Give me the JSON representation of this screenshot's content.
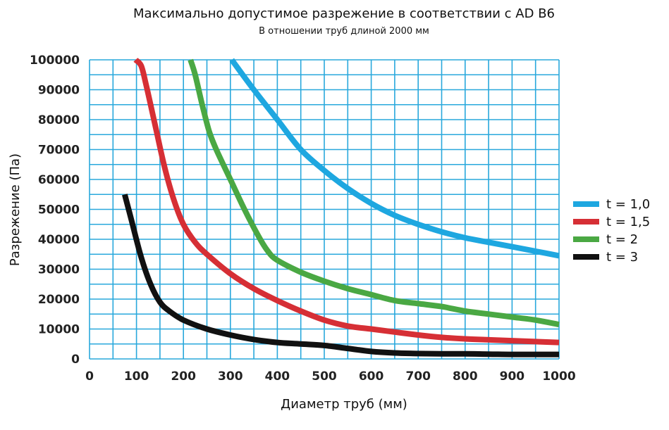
{
  "chart_data": {
    "type": "line",
    "title": "Максимально допустимое разрежение в соответствии с AD B6",
    "subtitle": "В отношении труб длиной 2000 мм",
    "xlabel": "Диаметр труб (мм)",
    "ylabel": "Разрежение (Па)",
    "xlim": [
      0,
      1000
    ],
    "ylim": [
      0,
      100000
    ],
    "x_ticks": [
      "0",
      "100",
      "200",
      "300",
      "400",
      "500",
      "600",
      "700",
      "800",
      "900",
      "1000"
    ],
    "y_ticks": [
      "0",
      "10000",
      "20000",
      "30000",
      "40000",
      "50000",
      "60000",
      "70000",
      "80000",
      "90000",
      "100000"
    ],
    "grid": true,
    "grid_color": "#29a8dc",
    "legend_position": "right",
    "series": [
      {
        "name": "t = 1,0",
        "color": "#1ea7e0",
        "points": [
          [
            303,
            100000
          ],
          [
            350,
            90000
          ],
          [
            400,
            80000
          ],
          [
            450,
            70000
          ],
          [
            500,
            63000
          ],
          [
            550,
            57000
          ],
          [
            600,
            52000
          ],
          [
            650,
            48000
          ],
          [
            700,
            45000
          ],
          [
            750,
            42500
          ],
          [
            800,
            40500
          ],
          [
            850,
            39000
          ],
          [
            900,
            37500
          ],
          [
            950,
            36000
          ],
          [
            1000,
            34500
          ]
        ]
      },
      {
        "name": "t = 1,5",
        "color": "#d62f35",
        "points": [
          [
            98,
            100000
          ],
          [
            110,
            98000
          ],
          [
            120,
            92000
          ],
          [
            140,
            78000
          ],
          [
            160,
            64000
          ],
          [
            180,
            53000
          ],
          [
            200,
            45000
          ],
          [
            225,
            39000
          ],
          [
            250,
            35000
          ],
          [
            300,
            28500
          ],
          [
            350,
            23500
          ],
          [
            400,
            19500
          ],
          [
            450,
            16000
          ],
          [
            500,
            13000
          ],
          [
            550,
            11000
          ],
          [
            600,
            10000
          ],
          [
            650,
            9000
          ],
          [
            700,
            8000
          ],
          [
            750,
            7200
          ],
          [
            800,
            6700
          ],
          [
            850,
            6400
          ],
          [
            900,
            6100
          ],
          [
            950,
            5800
          ],
          [
            1000,
            5500
          ]
        ]
      },
      {
        "name": "t = 2",
        "color": "#4aa843",
        "points": [
          [
            215,
            100000
          ],
          [
            225,
            95000
          ],
          [
            240,
            85000
          ],
          [
            255,
            76000
          ],
          [
            270,
            70000
          ],
          [
            300,
            60000
          ],
          [
            330,
            50000
          ],
          [
            360,
            41000
          ],
          [
            380,
            36000
          ],
          [
            400,
            33000
          ],
          [
            450,
            29000
          ],
          [
            500,
            26000
          ],
          [
            550,
            23500
          ],
          [
            600,
            21500
          ],
          [
            650,
            19500
          ],
          [
            700,
            18500
          ],
          [
            750,
            17500
          ],
          [
            800,
            16000
          ],
          [
            850,
            15000
          ],
          [
            900,
            14000
          ],
          [
            950,
            13000
          ],
          [
            1000,
            11500
          ]
        ]
      },
      {
        "name": "t = 3",
        "color": "#111111",
        "points": [
          [
            75,
            55000
          ],
          [
            90,
            46000
          ],
          [
            110,
            34000
          ],
          [
            130,
            25000
          ],
          [
            150,
            19000
          ],
          [
            170,
            16000
          ],
          [
            200,
            13000
          ],
          [
            250,
            10000
          ],
          [
            300,
            8000
          ],
          [
            350,
            6500
          ],
          [
            400,
            5500
          ],
          [
            450,
            5000
          ],
          [
            500,
            4500
          ],
          [
            550,
            3500
          ],
          [
            600,
            2500
          ],
          [
            650,
            2000
          ],
          [
            700,
            1800
          ],
          [
            750,
            1700
          ],
          [
            800,
            1700
          ],
          [
            850,
            1600
          ],
          [
            900,
            1500
          ],
          [
            950,
            1500
          ],
          [
            1000,
            1500
          ]
        ]
      }
    ]
  }
}
